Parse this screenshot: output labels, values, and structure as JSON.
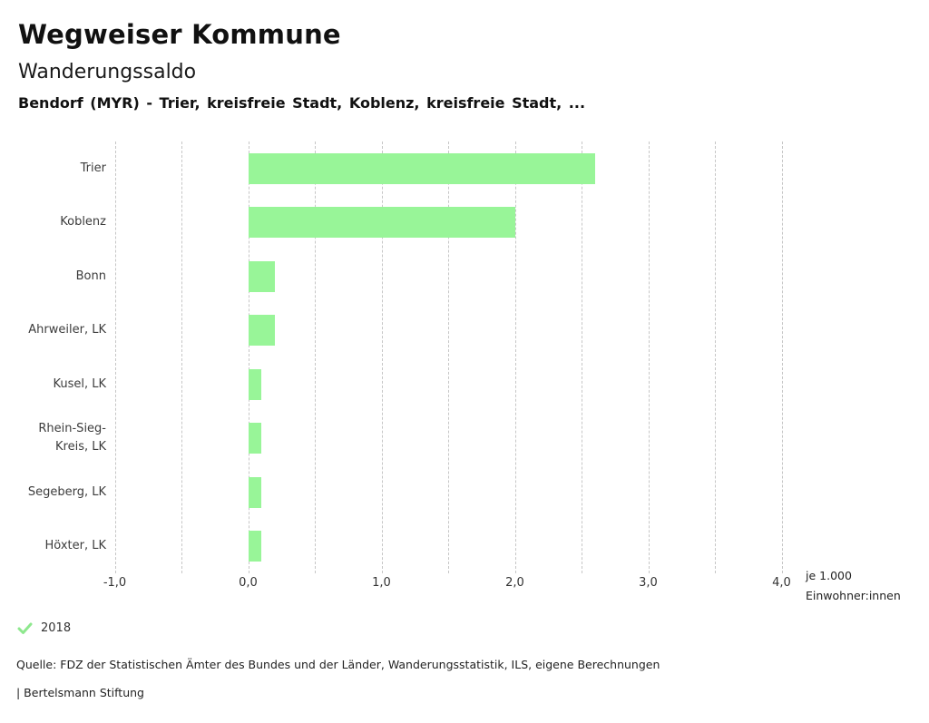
{
  "header": {
    "app_title": "Wegweiser Kommune",
    "chart_title": "Wanderungssaldo",
    "subtitle": "Bendorf (MYR) - Trier, kreisfreie Stadt, Koblenz, kreisfreie Stadt, ..."
  },
  "chart_data": {
    "type": "bar",
    "orientation": "horizontal",
    "title": "Wanderungssaldo",
    "categories": [
      "Trier",
      "Koblenz",
      "Bonn",
      "Ahrweiler, LK",
      "Kusel, LK",
      "Rhein-Sieg-Kreis, LK",
      "Segeberg, LK",
      "Höxter, LK"
    ],
    "series": [
      {
        "name": "2018",
        "values": [
          2.6,
          2.0,
          0.2,
          0.2,
          0.1,
          0.1,
          0.1,
          0.1
        ]
      }
    ],
    "xlabel": "je 1.000 Einwohner:innen",
    "xlim": [
      -1.0,
      4.0
    ],
    "grid_step": 0.5,
    "x_ticks": [
      {
        "value": -1,
        "label": "-1,0"
      },
      {
        "value": 0,
        "label": "0,0"
      },
      {
        "value": 1,
        "label": "1,0"
      },
      {
        "value": 2,
        "label": "2,0"
      },
      {
        "value": 3,
        "label": "3,0"
      },
      {
        "value": 4,
        "label": "4,0"
      }
    ],
    "grid": "vertical-dashed",
    "bar_color": "#98f598",
    "grid_color": "#c6c6c6",
    "legend_position": "bottom-left"
  },
  "legend": {
    "items": [
      {
        "label": "2018",
        "checked": true,
        "color": "#8ee88e"
      }
    ]
  },
  "footer": {
    "source": "Quelle: FDZ der Statistischen Ämter des Bundes und der Länder, Wanderungsstatistik, ILS, eigene Berechnungen",
    "branding": "| Bertelsmann Stiftung"
  }
}
